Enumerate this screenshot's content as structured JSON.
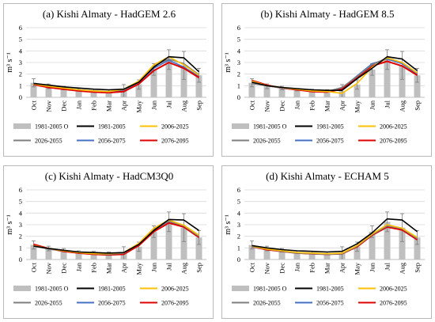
{
  "figure": {
    "months": [
      "Oct",
      "Nov",
      "Dec",
      "Jan",
      "Feb",
      "Mar",
      "Apr",
      "May",
      "Jun",
      "Jul",
      "Aug",
      "Sep"
    ],
    "y_label": "m³ s⁻¹",
    "y_ticks": [
      "0",
      "1",
      "2",
      "3",
      "4",
      "5",
      "6"
    ],
    "legend": [
      {
        "label": "1981-2005 O",
        "kind": "bar",
        "color": "#bfbfbf"
      },
      {
        "label": "1981-2005",
        "kind": "line",
        "color": "#000000"
      },
      {
        "label": "2006-2025",
        "kind": "line",
        "color": "#ffc000"
      },
      {
        "label": "2026-2055",
        "kind": "line",
        "color": "#7f7f7f"
      },
      {
        "label": "2056-2075",
        "kind": "line",
        "color": "#4472c4"
      },
      {
        "label": "2076-2095",
        "kind": "line",
        "color": "#e00000"
      }
    ]
  },
  "chart_data": [
    {
      "type": "bar",
      "title": "(a) Kishi Almaty - HadGEM 2.6",
      "ylabel": "m³ s⁻¹",
      "ylim": [
        0,
        6
      ],
      "categories": [
        "Oct",
        "Nov",
        "Dec",
        "Jan",
        "Feb",
        "Mar",
        "Apr",
        "May",
        "Jun",
        "Jul",
        "Aug",
        "Sep"
      ],
      "observed": {
        "name": "1981-2005 O",
        "values": [
          1.25,
          0.95,
          0.8,
          0.65,
          0.6,
          0.55,
          0.55,
          1.1,
          2.4,
          3.25,
          2.75,
          1.9
        ],
        "error": [
          0.35,
          0.2,
          0.15,
          0.1,
          0.1,
          0.1,
          0.55,
          0.4,
          0.5,
          0.85,
          1.2,
          0.6
        ]
      },
      "series": [
        {
          "name": "1981-2005",
          "color": "#000000",
          "values": [
            1.2,
            1.05,
            0.9,
            0.8,
            0.7,
            0.65,
            0.7,
            1.3,
            2.6,
            3.5,
            3.4,
            2.2
          ]
        },
        {
          "name": "2006-2025",
          "color": "#ffc000",
          "values": [
            1.15,
            0.95,
            0.8,
            0.65,
            0.55,
            0.5,
            0.7,
            1.4,
            2.8,
            3.5,
            2.8,
            1.9
          ]
        },
        {
          "name": "2026-2055",
          "color": "#7f7f7f",
          "values": [
            1.15,
            0.95,
            0.8,
            0.65,
            0.55,
            0.5,
            0.65,
            1.35,
            2.7,
            3.3,
            2.9,
            1.95
          ]
        },
        {
          "name": "2056-2075",
          "color": "#4472c4",
          "values": [
            1.1,
            0.9,
            0.75,
            0.6,
            0.5,
            0.45,
            0.6,
            1.3,
            2.5,
            3.2,
            2.6,
            1.8
          ]
        },
        {
          "name": "2076-2095",
          "color": "#e00000",
          "values": [
            1.1,
            0.85,
            0.7,
            0.55,
            0.45,
            0.4,
            0.5,
            1.15,
            2.3,
            3.0,
            2.5,
            1.7
          ]
        }
      ]
    },
    {
      "type": "bar",
      "title": "(b) Kishi Almaty - HadGEM 8.5",
      "ylabel": "m³ s⁻¹",
      "ylim": [
        0,
        6
      ],
      "categories": [
        "Oct",
        "Nov",
        "Dec",
        "Jan",
        "Feb",
        "Mar",
        "Apr",
        "May",
        "Jun",
        "Jul",
        "Aug",
        "Sep"
      ],
      "observed": {
        "name": "1981-2005 O",
        "values": [
          1.25,
          0.95,
          0.8,
          0.65,
          0.6,
          0.55,
          0.55,
          1.1,
          2.4,
          3.25,
          2.75,
          1.9
        ],
        "error": [
          0.35,
          0.2,
          0.15,
          0.1,
          0.1,
          0.1,
          0.55,
          0.4,
          0.5,
          0.85,
          1.2,
          0.6
        ]
      },
      "series": [
        {
          "name": "1981-2005",
          "color": "#000000",
          "values": [
            1.3,
            1.0,
            0.85,
            0.75,
            0.65,
            0.6,
            0.6,
            1.6,
            2.5,
            3.5,
            3.3,
            2.3
          ]
        },
        {
          "name": "2006-2025",
          "color": "#ffc000",
          "values": [
            1.4,
            1.0,
            0.85,
            0.7,
            0.55,
            0.5,
            0.35,
            1.2,
            2.6,
            3.4,
            3.0,
            2.1
          ]
        },
        {
          "name": "2026-2055",
          "color": "#7f7f7f",
          "values": [
            1.2,
            1.0,
            0.8,
            0.7,
            0.6,
            0.5,
            0.85,
            1.8,
            2.8,
            3.4,
            3.0,
            2.1
          ]
        },
        {
          "name": "2056-2075",
          "color": "#4472c4",
          "values": [
            1.35,
            1.0,
            0.8,
            0.65,
            0.55,
            0.5,
            0.8,
            1.85,
            2.9,
            3.3,
            2.9,
            2.0
          ]
        },
        {
          "name": "2076-2095",
          "color": "#e00000",
          "values": [
            1.45,
            1.05,
            0.8,
            0.65,
            0.5,
            0.45,
            0.7,
            1.7,
            2.7,
            3.1,
            2.7,
            1.9
          ]
        }
      ]
    },
    {
      "type": "bar",
      "title": "(c) Kishi Almaty - HadCM3Q0",
      "ylabel": "m³ s⁻¹",
      "ylim": [
        0,
        6
      ],
      "categories": [
        "Oct",
        "Nov",
        "Dec",
        "Jan",
        "Feb",
        "Mar",
        "Apr",
        "May",
        "Jun",
        "Jul",
        "Aug",
        "Sep"
      ],
      "observed": {
        "name": "1981-2005 O",
        "values": [
          1.25,
          0.95,
          0.8,
          0.65,
          0.6,
          0.55,
          0.55,
          1.1,
          2.4,
          3.25,
          2.75,
          1.9
        ],
        "error": [
          0.35,
          0.2,
          0.15,
          0.1,
          0.1,
          0.1,
          0.55,
          0.4,
          0.5,
          0.85,
          1.2,
          0.6
        ]
      },
      "series": [
        {
          "name": "1981-2005",
          "color": "#000000",
          "values": [
            1.15,
            0.95,
            0.8,
            0.65,
            0.6,
            0.55,
            0.6,
            1.3,
            2.5,
            3.45,
            3.4,
            2.5
          ]
        },
        {
          "name": "2006-2025",
          "color": "#ffc000",
          "values": [
            1.2,
            0.95,
            0.75,
            0.6,
            0.5,
            0.5,
            0.6,
            1.4,
            2.7,
            3.4,
            2.95,
            2.1
          ]
        },
        {
          "name": "2026-2055",
          "color": "#7f7f7f",
          "values": [
            1.2,
            0.9,
            0.75,
            0.6,
            0.5,
            0.45,
            0.55,
            1.35,
            2.6,
            3.3,
            2.9,
            2.0
          ]
        },
        {
          "name": "2056-2075",
          "color": "#4472c4",
          "values": [
            1.25,
            0.9,
            0.75,
            0.55,
            0.45,
            0.4,
            0.5,
            1.3,
            2.55,
            3.3,
            2.85,
            2.0
          ]
        },
        {
          "name": "2076-2095",
          "color": "#e00000",
          "values": [
            1.3,
            0.95,
            0.7,
            0.55,
            0.45,
            0.4,
            0.45,
            1.2,
            2.4,
            3.15,
            2.8,
            1.9
          ]
        }
      ]
    },
    {
      "type": "bar",
      "title": "(d) Kishi Almaty - ECHAM 5",
      "ylabel": "m³ s⁻¹",
      "ylim": [
        0,
        6
      ],
      "categories": [
        "Oct",
        "Nov",
        "Dec",
        "Jan",
        "Feb",
        "Mar",
        "Apr",
        "May",
        "Jun",
        "Jul",
        "Aug",
        "Sep"
      ],
      "observed": {
        "name": "1981-2005 O",
        "values": [
          1.25,
          0.95,
          0.8,
          0.65,
          0.6,
          0.55,
          0.55,
          1.1,
          2.4,
          3.25,
          2.75,
          1.9
        ],
        "error": [
          0.35,
          0.2,
          0.15,
          0.1,
          0.1,
          0.1,
          0.55,
          0.4,
          0.5,
          0.85,
          1.2,
          0.6
        ]
      },
      "series": [
        {
          "name": "1981-2005",
          "color": "#000000",
          "values": [
            1.2,
            1.0,
            0.85,
            0.75,
            0.7,
            0.65,
            0.7,
            1.35,
            2.3,
            3.5,
            3.4,
            2.4
          ]
        },
        {
          "name": "2006-2025",
          "color": "#ffc000",
          "values": [
            1.15,
            0.9,
            0.75,
            0.6,
            0.55,
            0.5,
            0.55,
            1.2,
            2.2,
            3.0,
            2.7,
            1.9
          ]
        },
        {
          "name": "2026-2055",
          "color": "#7f7f7f",
          "values": [
            1.1,
            0.9,
            0.7,
            0.55,
            0.5,
            0.45,
            0.5,
            1.15,
            2.15,
            2.9,
            2.65,
            1.8
          ]
        },
        {
          "name": "2056-2075",
          "color": "#4472c4",
          "values": [
            1.1,
            0.85,
            0.7,
            0.55,
            0.5,
            0.45,
            0.5,
            1.1,
            2.1,
            2.8,
            2.6,
            1.75
          ]
        },
        {
          "name": "2076-2095",
          "color": "#e00000",
          "values": [
            1.1,
            0.85,
            0.7,
            0.55,
            0.5,
            0.45,
            0.5,
            1.1,
            2.1,
            2.8,
            2.55,
            1.7
          ]
        }
      ]
    }
  ]
}
